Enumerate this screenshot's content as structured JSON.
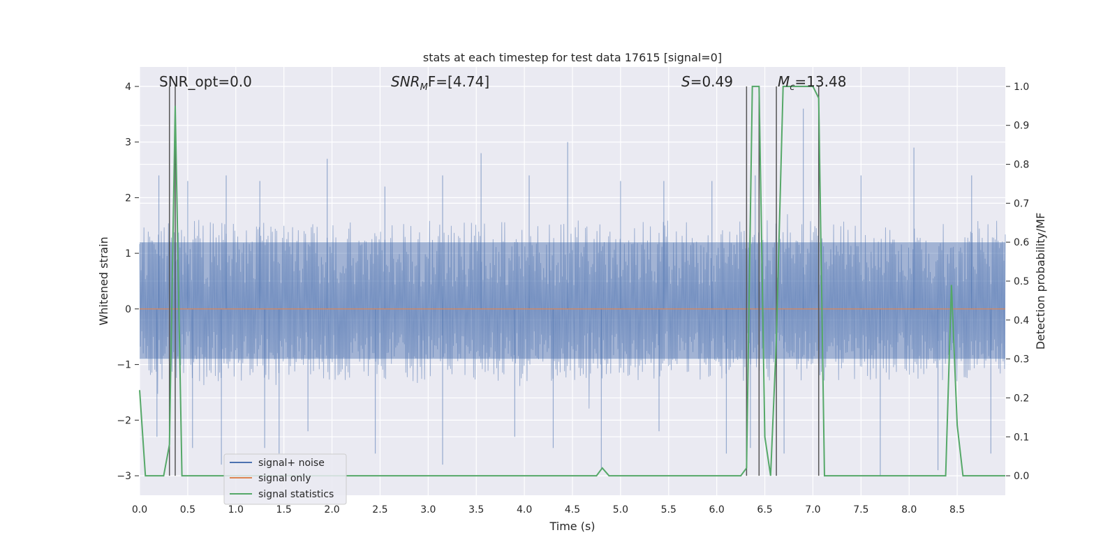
{
  "chart_data": {
    "type": "line",
    "title": "stats at each timestep for test data 17615 [signal=0]",
    "xlabel": "Time (s)",
    "ylabel": "Whitened strain",
    "y2label": "Detection probability/MF",
    "xlim": [
      0.0,
      9.0
    ],
    "ylim": [
      -3.35,
      4.35
    ],
    "y2lim": [
      -0.05,
      1.05
    ],
    "xticks": [
      0.0,
      0.5,
      1.0,
      1.5,
      2.0,
      2.5,
      3.0,
      3.5,
      4.0,
      4.5,
      5.0,
      5.5,
      6.0,
      6.5,
      7.0,
      7.5,
      8.0,
      8.5
    ],
    "xtick_labels": [
      "0.0",
      "0.5",
      "1.0",
      "1.5",
      "2.0",
      "2.5",
      "3.0",
      "3.5",
      "4.0",
      "4.5",
      "5.0",
      "5.5",
      "6.0",
      "6.5",
      "7.0",
      "7.5",
      "8.0",
      "8.5"
    ],
    "yticks": [
      -3,
      -2,
      -1,
      0,
      1,
      2,
      3,
      4
    ],
    "ytick_labels": [
      "−3",
      "−2",
      "−1",
      "0",
      "1",
      "2",
      "3",
      "4"
    ],
    "y2ticks": [
      0.0,
      0.1,
      0.2,
      0.3,
      0.4,
      0.5,
      0.6,
      0.7,
      0.8,
      0.9,
      1.0
    ],
    "y2tick_labels": [
      "0.0",
      "0.1",
      "0.2",
      "0.3",
      "0.4",
      "0.5",
      "0.6",
      "0.7",
      "0.8",
      "0.9",
      "1.0"
    ],
    "grid": true,
    "legend_position": "lower-left",
    "annotations": {
      "snr_opt": "SNR_opt=0.0",
      "snr_mf_prefix": "SNR",
      "snr_mf_sub": "M",
      "snr_mf_suffix": "F=[4.74]",
      "s_prefix": "S",
      "s_value": "=0.49",
      "mc_prefix": "M",
      "mc_sub": "c",
      "mc_value": "=13.48"
    },
    "series": [
      {
        "name": "signal+ noise",
        "color": "#4c72b0",
        "axis": "left",
        "envelope": {
          "x_range": [
            0.0,
            9.0
          ],
          "y_band": [
            -0.9,
            1.2
          ],
          "peaks_up": [
            [
              0.2,
              2.4
            ],
            [
              0.5,
              2.3
            ],
            [
              0.9,
              2.4
            ],
            [
              1.25,
              2.3
            ],
            [
              1.95,
              2.7
            ],
            [
              2.55,
              2.2
            ],
            [
              3.15,
              2.4
            ],
            [
              3.55,
              2.8
            ],
            [
              4.05,
              2.4
            ],
            [
              4.45,
              3.0
            ],
            [
              5.0,
              2.3
            ],
            [
              5.45,
              2.3
            ],
            [
              5.95,
              2.3
            ],
            [
              6.4,
              2.4
            ],
            [
              6.9,
              3.6
            ],
            [
              7.5,
              2.4
            ],
            [
              8.05,
              2.9
            ],
            [
              8.65,
              2.4
            ]
          ],
          "peaks_down": [
            [
              0.18,
              -2.3
            ],
            [
              0.55,
              -2.5
            ],
            [
              0.85,
              -2.8
            ],
            [
              1.3,
              -2.5
            ],
            [
              1.45,
              -2.6
            ],
            [
              1.75,
              -2.2
            ],
            [
              2.45,
              -2.6
            ],
            [
              3.15,
              -2.8
            ],
            [
              3.9,
              -2.3
            ],
            [
              4.3,
              -2.5
            ],
            [
              4.8,
              -2.9
            ],
            [
              5.4,
              -2.2
            ],
            [
              6.1,
              -2.6
            ],
            [
              6.35,
              -2.5
            ],
            [
              6.7,
              -2.6
            ],
            [
              7.7,
              -3.0
            ],
            [
              8.3,
              -2.9
            ],
            [
              8.85,
              -2.6
            ]
          ]
        }
      },
      {
        "name": "signal only",
        "color": "#dd8452",
        "axis": "left",
        "x": [
          0.0,
          9.0
        ],
        "y": [
          0.0,
          0.0
        ]
      },
      {
        "name": "signal statistics",
        "color": "#55a868",
        "axis": "right",
        "x": [
          0.0,
          0.06,
          0.25,
          0.31,
          0.37,
          0.44,
          0.5,
          4.25,
          4.75,
          4.81,
          4.88,
          5.0,
          6.25,
          6.31,
          6.37,
          6.44,
          6.5,
          6.56,
          6.62,
          6.69,
          6.75,
          6.94,
          7.0,
          7.06,
          7.12,
          7.19,
          8.38,
          8.44,
          8.5,
          8.56,
          9.0
        ],
        "y": [
          0.22,
          0.0,
          0.0,
          0.08,
          0.95,
          0.0,
          0.0,
          0.0,
          0.0,
          0.02,
          0.0,
          0.0,
          0.0,
          0.02,
          1.0,
          1.0,
          0.1,
          0.0,
          0.35,
          1.0,
          1.0,
          1.0,
          1.0,
          0.97,
          0.0,
          0.0,
          0.0,
          0.49,
          0.13,
          0.0,
          0.0
        ]
      }
    ],
    "vlines": [
      0.31,
      0.37,
      6.31,
      6.44,
      6.62,
      7.06
    ],
    "vline_color": "#555555"
  }
}
